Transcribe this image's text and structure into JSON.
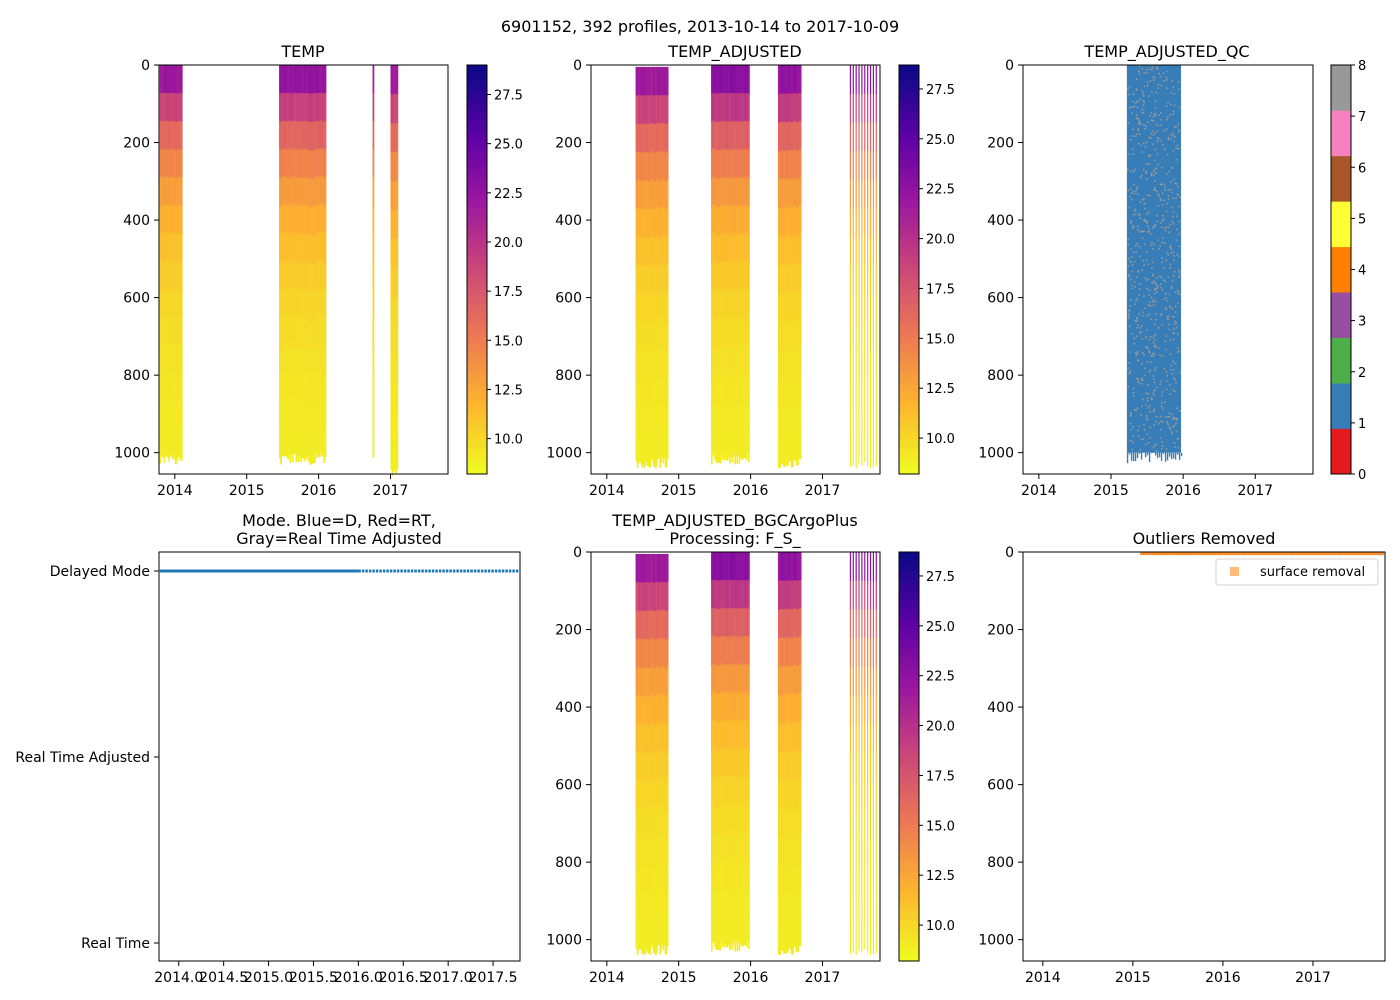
{
  "figure": {
    "suptitle": "6901152, 392 profiles, 2013-10-14 to 2017-10-09"
  },
  "colors": {
    "plasma": [
      "#0d0887",
      "#5c01a6",
      "#9c179e",
      "#cc4778",
      "#ed7953",
      "#fdb42f",
      "#f0f921"
    ],
    "qc": [
      "#e41a1c",
      "#377eb8",
      "#4daf4a",
      "#984ea3",
      "#ff7f00",
      "#ffff33",
      "#a65628",
      "#f781bf",
      "#999999"
    ],
    "mode_line": "#1f77b4",
    "outlier": "#ff7f0e",
    "qc_cell_alt": "#999999"
  },
  "chart_data": [
    {
      "id": "temp",
      "type": "heatmap",
      "title": "TEMP",
      "xlabel": "",
      "ylabel": "",
      "xlim": [
        2013.78,
        2017.8
      ],
      "ylim": [
        1055,
        0
      ],
      "x_ticks": [
        "2014",
        "2015",
        "2016",
        "2017"
      ],
      "x_tick_values": [
        2014,
        2015,
        2016,
        2017
      ],
      "y_ticks": [
        "0",
        "200",
        "400",
        "600",
        "800",
        "1000"
      ],
      "y_tick_values": [
        0,
        200,
        400,
        600,
        800,
        1000
      ],
      "colorbar": {
        "ticks": [
          "10.0",
          "12.5",
          "15.0",
          "17.5",
          "20.0",
          "22.5",
          "25.0",
          "27.5"
        ],
        "tick_values": [
          10,
          12.5,
          15,
          17.5,
          20,
          22.5,
          25,
          27.5
        ],
        "range": [
          8.2,
          29.0
        ]
      },
      "profile_blocks": [
        {
          "start": 2013.79,
          "end": 2014.1,
          "n": 28,
          "max_depth": 1000,
          "surface_temp": 24.0
        },
        {
          "start": 2015.45,
          "end": 2016.1,
          "n": 40,
          "max_depth": 1000,
          "surface_temp": 24.5
        },
        {
          "start": 2016.75,
          "end": 2016.76,
          "n": 1,
          "max_depth": 990,
          "surface_temp": 23.5
        },
        {
          "start": 2017.0,
          "end": 2017.1,
          "n": 6,
          "max_depth": 1040,
          "surface_temp": 24.0
        }
      ]
    },
    {
      "id": "temp_adjusted",
      "type": "heatmap",
      "title": "TEMP_ADJUSTED",
      "xlabel": "",
      "ylabel": "",
      "xlim": [
        2013.78,
        2017.8
      ],
      "ylim": [
        1055,
        0
      ],
      "x_ticks": [
        "2014",
        "2015",
        "2016",
        "2017"
      ],
      "x_tick_values": [
        2014,
        2015,
        2016,
        2017
      ],
      "y_ticks": [
        "0",
        "200",
        "400",
        "600",
        "800",
        "1000"
      ],
      "y_tick_values": [
        0,
        200,
        400,
        600,
        800,
        1000
      ],
      "colorbar": {
        "ticks": [
          "10.0",
          "12.5",
          "15.0",
          "17.5",
          "20.0",
          "22.5",
          "25.0",
          "27.5"
        ],
        "tick_values": [
          10,
          12.5,
          15,
          17.5,
          20,
          22.5,
          25,
          27.5
        ],
        "range": [
          8.2,
          28.7
        ]
      },
      "profile_blocks": [
        {
          "start": 2014.4,
          "end": 2014.85,
          "n": 30,
          "max_depth": 1010,
          "surface_temp": 24.0,
          "top_depth": 5
        },
        {
          "start": 2015.45,
          "end": 2015.98,
          "n": 36,
          "max_depth": 1000,
          "surface_temp": 25.0
        },
        {
          "start": 2016.38,
          "end": 2016.7,
          "n": 9,
          "max_depth": 1010,
          "surface_temp": 24.5
        },
        {
          "start": 2017.38,
          "end": 2017.78,
          "n": 10,
          "max_depth": 1010,
          "surface_temp": 24.5
        }
      ]
    },
    {
      "id": "temp_adjusted_qc",
      "type": "heatmap",
      "title": "TEMP_ADJUSTED_QC",
      "xlabel": "",
      "ylabel": "",
      "xlim": [
        2013.78,
        2017.8
      ],
      "ylim": [
        1055,
        0
      ],
      "x_ticks": [
        "2014",
        "2015",
        "2016",
        "2017"
      ],
      "x_tick_values": [
        2014,
        2015,
        2016,
        2017
      ],
      "y_ticks": [
        "0",
        "200",
        "400",
        "600",
        "800",
        "1000"
      ],
      "y_tick_values": [
        0,
        200,
        400,
        600,
        800,
        1000
      ],
      "colorbar": {
        "ticks": [
          "0",
          "1",
          "2",
          "3",
          "4",
          "5",
          "6",
          "7",
          "8"
        ],
        "tick_values": [
          0,
          1,
          2,
          3,
          4,
          5,
          6,
          7,
          8
        ],
        "range": [
          0,
          8
        ]
      },
      "qc_block": {
        "start": 2015.22,
        "end": 2015.97,
        "max_depth": 1000,
        "dominant_flag": 1,
        "secondary_flag": 8
      }
    },
    {
      "id": "mode",
      "type": "scatter",
      "title": "Mode. Blue=D, Red=RT,\nGray=Real Time Adjusted",
      "title_lines": [
        "Mode. Blue=D, Red=RT,",
        "Gray=Real Time Adjusted"
      ],
      "xlabel": "",
      "ylabel": "",
      "xlim": [
        2013.78,
        2017.8
      ],
      "x_ticks": [
        "2014.0",
        "2014.5",
        "2015.0",
        "2015.5",
        "2016.0",
        "2016.5",
        "2017.0",
        "2017.5"
      ],
      "x_tick_values": [
        2014.0,
        2014.5,
        2015.0,
        2015.5,
        2016.0,
        2016.5,
        2017.0,
        2017.5
      ],
      "y_categories": [
        "Delayed Mode",
        "Real Time Adjusted",
        "Real Time"
      ],
      "series": [
        {
          "name": "Delayed Mode",
          "x_start": 2013.79,
          "x_end": 2017.77,
          "dense_until": 2016.0,
          "level": "Delayed Mode"
        }
      ]
    },
    {
      "id": "temp_adjusted_bgc",
      "type": "heatmap",
      "title": "TEMP_ADJUSTED_BGCArgoPlus\nProcessing: F_S_",
      "title_lines": [
        "TEMP_ADJUSTED_BGCArgoPlus",
        "Processing: F_S_"
      ],
      "xlabel": "",
      "ylabel": "",
      "xlim": [
        2013.78,
        2017.8
      ],
      "ylim": [
        1055,
        0
      ],
      "x_ticks": [
        "2014",
        "2015",
        "2016",
        "2017"
      ],
      "x_tick_values": [
        2014,
        2015,
        2016,
        2017
      ],
      "y_ticks": [
        "0",
        "200",
        "400",
        "600",
        "800",
        "1000"
      ],
      "y_tick_values": [
        0,
        200,
        400,
        600,
        800,
        1000
      ],
      "colorbar": {
        "ticks": [
          "10.0",
          "12.5",
          "15.0",
          "17.5",
          "20.0",
          "22.5",
          "25.0",
          "27.5"
        ],
        "tick_values": [
          10,
          12.5,
          15,
          17.5,
          20,
          22.5,
          25,
          27.5
        ],
        "range": [
          8.2,
          28.7
        ]
      },
      "profile_blocks": [
        {
          "start": 2014.4,
          "end": 2014.85,
          "n": 30,
          "max_depth": 1010,
          "surface_temp": 24.0,
          "top_depth": 5
        },
        {
          "start": 2015.45,
          "end": 2015.98,
          "n": 36,
          "max_depth": 1000,
          "surface_temp": 25.0
        },
        {
          "start": 2016.38,
          "end": 2016.7,
          "n": 9,
          "max_depth": 1010,
          "surface_temp": 24.5
        },
        {
          "start": 2017.38,
          "end": 2017.78,
          "n": 10,
          "max_depth": 1010,
          "surface_temp": 24.5
        }
      ]
    },
    {
      "id": "outliers",
      "type": "scatter",
      "title": "Outliers Removed",
      "xlabel": "",
      "ylabel": "",
      "xlim": [
        2013.78,
        2017.8
      ],
      "ylim": [
        1055,
        0
      ],
      "x_ticks": [
        "2014",
        "2015",
        "2016",
        "2017"
      ],
      "x_tick_values": [
        2014,
        2015,
        2016,
        2017
      ],
      "y_ticks": [
        "0",
        "200",
        "400",
        "600",
        "800",
        "1000"
      ],
      "y_tick_values": [
        0,
        200,
        400,
        600,
        800,
        1000
      ],
      "legend": {
        "label": "surface removal",
        "placement": "upper right"
      },
      "series": [
        {
          "name": "surface removal",
          "x_start": 2015.08,
          "x_end": 2017.8,
          "depth_range": [
            0,
            8
          ]
        }
      ]
    }
  ]
}
